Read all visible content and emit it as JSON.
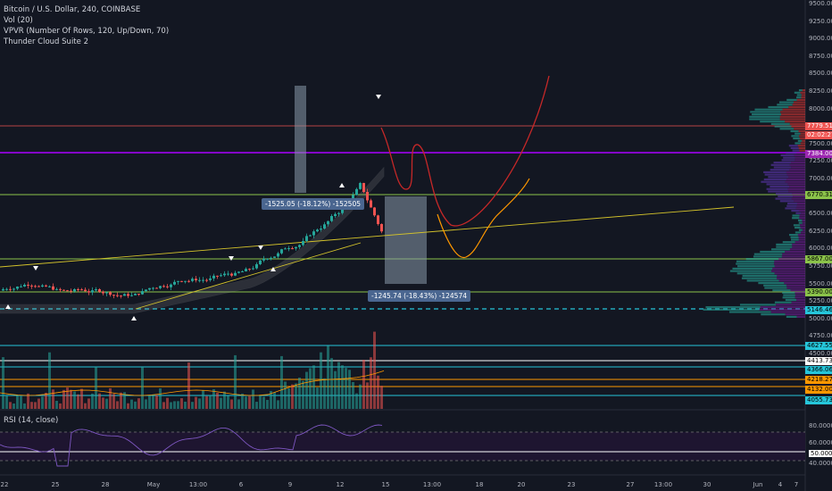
{
  "legend": {
    "title": "Bitcoin / U.S. Dollar, 240, COINBASE",
    "volume": "Vol (20)",
    "vpvr": "VPVR (Number Of Rows, 120, Up/Down, 70)",
    "indicator": "Thunder Cloud Suite 2"
  },
  "rsi": {
    "label": "RSI (14, close)",
    "levels": [
      "80.0000",
      "60.0000",
      "50.0000",
      "40.0000"
    ]
  },
  "measure": {
    "top": "-1525.05 (-18.12%) -152505",
    "bottom": "-1245.74 (-18.43%) -124574"
  },
  "price_axis": [
    "9500.00",
    "9250.00",
    "9000.00",
    "8750.00",
    "8500.00",
    "8250.00",
    "8000.00",
    "7750.00",
    "7500.00",
    "7250.00",
    "7000.00",
    "6750.00",
    "6500.00",
    "6250.00",
    "6000.00",
    "5750.00",
    "5500.00",
    "5250.00",
    "5000.00",
    "4750.00",
    "4500.00"
  ],
  "price_tags": [
    {
      "text": "7779.51",
      "bg": "#ef5350",
      "fg": "#ffffff"
    },
    {
      "text": "02:02:27",
      "bg": "#ef5350",
      "fg": "#ffffff"
    },
    {
      "text": "7384.00",
      "bg": "#9c27b0",
      "fg": "#ffffff"
    },
    {
      "text": "6770.31",
      "bg": "#8bc34a",
      "fg": "#000000"
    },
    {
      "text": "5867.00",
      "bg": "#8bc34a",
      "fg": "#000000"
    },
    {
      "text": "5390.00",
      "bg": "#8bc34a",
      "fg": "#000000"
    },
    {
      "text": "5146.46",
      "bg": "#26c6da",
      "fg": "#000000"
    },
    {
      "text": "4627.55",
      "bg": "#26c6da",
      "fg": "#000000"
    },
    {
      "text": "4413.73",
      "bg": "#ffffff",
      "fg": "#000000"
    },
    {
      "text": "4366.06",
      "bg": "#26c6da",
      "fg": "#000000"
    },
    {
      "text": "4218.27",
      "bg": "#ff9800",
      "fg": "#000000"
    },
    {
      "text": "4132.00",
      "bg": "#ff9800",
      "fg": "#000000"
    },
    {
      "text": "4055.73",
      "bg": "#26c6da",
      "fg": "#000000"
    }
  ],
  "time_axis": [
    "22",
    "25",
    "28",
    "May",
    "13:00",
    "6",
    "9",
    "12",
    "15",
    "13:00",
    "18",
    "20",
    "23",
    "27",
    "13:00",
    "30",
    "Jun",
    "4",
    "7"
  ],
  "colors": {
    "background": "#131722",
    "up_candle": "#26a69a",
    "down_candle": "#ef5350",
    "resistance_red": "#ef5350",
    "resistance_purple": "#aa00ff",
    "support_green": "#8bc34a",
    "support_cyan": "#26c6da",
    "trend_yellow": "#d4c32b",
    "path_red": "#c62828",
    "path_orange": "#ff9800"
  }
}
